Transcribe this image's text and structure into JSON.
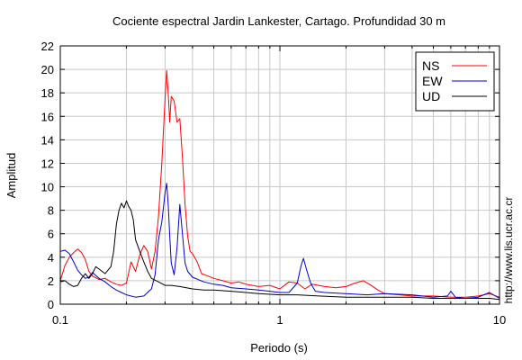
{
  "chart_data": {
    "type": "line",
    "title": "Cociente espectral Jardin Lankester, Cartago. Profundidad 30 m",
    "xlabel": "Periodo (s)",
    "ylabel": "Amplitud",
    "xscale": "log",
    "xlim": [
      0.1,
      10
    ],
    "ylim": [
      0,
      22
    ],
    "xticks": [
      {
        "value": 0.1,
        "label": "0.1"
      },
      {
        "value": 1,
        "label": "1"
      },
      {
        "value": 10,
        "label": "10"
      }
    ],
    "yticks": [
      0,
      2,
      4,
      6,
      8,
      10,
      12,
      14,
      16,
      18,
      20,
      22
    ],
    "grid": true,
    "legend_position": "top-right",
    "side_note": "http://www.lis.ucr.ac.cr",
    "series": [
      {
        "name": "NS",
        "color": "#ff0000",
        "points": [
          [
            0.1,
            2.0
          ],
          [
            0.105,
            3.3
          ],
          [
            0.11,
            4.0
          ],
          [
            0.115,
            4.4
          ],
          [
            0.12,
            4.7
          ],
          [
            0.125,
            4.4
          ],
          [
            0.13,
            3.8
          ],
          [
            0.135,
            2.8
          ],
          [
            0.14,
            2.4
          ],
          [
            0.15,
            2.1
          ],
          [
            0.16,
            2.2
          ],
          [
            0.17,
            1.9
          ],
          [
            0.18,
            1.7
          ],
          [
            0.19,
            1.6
          ],
          [
            0.2,
            1.8
          ],
          [
            0.21,
            3.6
          ],
          [
            0.22,
            2.8
          ],
          [
            0.23,
            4.2
          ],
          [
            0.24,
            5.0
          ],
          [
            0.25,
            4.5
          ],
          [
            0.26,
            3.0
          ],
          [
            0.27,
            4.5
          ],
          [
            0.28,
            7.5
          ],
          [
            0.29,
            12.0
          ],
          [
            0.3,
            17.5
          ],
          [
            0.305,
            19.9
          ],
          [
            0.31,
            18.0
          ],
          [
            0.315,
            15.5
          ],
          [
            0.32,
            17.7
          ],
          [
            0.33,
            17.3
          ],
          [
            0.34,
            15.5
          ],
          [
            0.35,
            15.8
          ],
          [
            0.36,
            12.5
          ],
          [
            0.37,
            8.5
          ],
          [
            0.38,
            5.8
          ],
          [
            0.39,
            4.5
          ],
          [
            0.4,
            4.3
          ],
          [
            0.42,
            3.6
          ],
          [
            0.44,
            2.6
          ],
          [
            0.47,
            2.4
          ],
          [
            0.5,
            2.2
          ],
          [
            0.55,
            2.0
          ],
          [
            0.6,
            1.8
          ],
          [
            0.65,
            1.9
          ],
          [
            0.7,
            1.7
          ],
          [
            0.75,
            1.6
          ],
          [
            0.8,
            1.5
          ],
          [
            0.9,
            1.6
          ],
          [
            1.0,
            1.3
          ],
          [
            1.1,
            1.9
          ],
          [
            1.2,
            1.8
          ],
          [
            1.3,
            1.3
          ],
          [
            1.4,
            1.7
          ],
          [
            1.6,
            1.5
          ],
          [
            1.8,
            1.4
          ],
          [
            2.0,
            1.5
          ],
          [
            2.2,
            1.8
          ],
          [
            2.4,
            2.0
          ],
          [
            2.6,
            1.6
          ],
          [
            2.8,
            1.2
          ],
          [
            3.0,
            0.9
          ],
          [
            3.5,
            0.8
          ],
          [
            4.0,
            0.7
          ],
          [
            5.0,
            0.7
          ],
          [
            6.0,
            0.6
          ],
          [
            7.0,
            0.6
          ],
          [
            8.0,
            0.7
          ],
          [
            9.0,
            0.9
          ],
          [
            10.0,
            0.6
          ]
        ]
      },
      {
        "name": "EW",
        "color": "#0000cc",
        "points": [
          [
            0.1,
            4.5
          ],
          [
            0.105,
            4.6
          ],
          [
            0.11,
            4.3
          ],
          [
            0.115,
            3.6
          ],
          [
            0.12,
            2.9
          ],
          [
            0.125,
            2.5
          ],
          [
            0.13,
            2.2
          ],
          [
            0.135,
            2.3
          ],
          [
            0.14,
            2.7
          ],
          [
            0.15,
            2.2
          ],
          [
            0.16,
            1.9
          ],
          [
            0.17,
            1.5
          ],
          [
            0.18,
            1.2
          ],
          [
            0.19,
            1.0
          ],
          [
            0.2,
            0.8
          ],
          [
            0.22,
            0.6
          ],
          [
            0.24,
            0.7
          ],
          [
            0.26,
            1.3
          ],
          [
            0.27,
            2.5
          ],
          [
            0.28,
            5.5
          ],
          [
            0.29,
            7.0
          ],
          [
            0.3,
            9.5
          ],
          [
            0.305,
            10.3
          ],
          [
            0.31,
            8.5
          ],
          [
            0.315,
            5.8
          ],
          [
            0.32,
            3.5
          ],
          [
            0.33,
            2.5
          ],
          [
            0.34,
            4.8
          ],
          [
            0.35,
            8.5
          ],
          [
            0.36,
            6.0
          ],
          [
            0.37,
            3.5
          ],
          [
            0.38,
            2.8
          ],
          [
            0.4,
            2.3
          ],
          [
            0.45,
            1.9
          ],
          [
            0.5,
            1.7
          ],
          [
            0.55,
            1.6
          ],
          [
            0.6,
            1.4
          ],
          [
            0.7,
            1.3
          ],
          [
            0.8,
            1.2
          ],
          [
            0.9,
            1.1
          ],
          [
            1.0,
            1.0
          ],
          [
            1.1,
            1.0
          ],
          [
            1.2,
            1.8
          ],
          [
            1.25,
            3.3
          ],
          [
            1.28,
            3.9
          ],
          [
            1.32,
            3.0
          ],
          [
            1.38,
            1.8
          ],
          [
            1.45,
            1.1
          ],
          [
            1.6,
            1.0
          ],
          [
            2.0,
            0.9
          ],
          [
            2.5,
            0.8
          ],
          [
            3.0,
            0.9
          ],
          [
            4.0,
            0.8
          ],
          [
            5.0,
            0.6
          ],
          [
            5.8,
            0.7
          ],
          [
            6.0,
            1.1
          ],
          [
            6.3,
            0.6
          ],
          [
            7.0,
            0.5
          ],
          [
            8.0,
            0.6
          ],
          [
            9.0,
            1.0
          ],
          [
            10.0,
            0.5
          ]
        ]
      },
      {
        "name": "UD",
        "color": "#000000",
        "points": [
          [
            0.1,
            1.9
          ],
          [
            0.105,
            2.0
          ],
          [
            0.11,
            1.7
          ],
          [
            0.115,
            1.5
          ],
          [
            0.12,
            1.6
          ],
          [
            0.125,
            2.2
          ],
          [
            0.13,
            2.6
          ],
          [
            0.135,
            2.2
          ],
          [
            0.14,
            2.6
          ],
          [
            0.145,
            3.2
          ],
          [
            0.15,
            3.0
          ],
          [
            0.155,
            2.8
          ],
          [
            0.16,
            2.6
          ],
          [
            0.17,
            3.2
          ],
          [
            0.175,
            4.5
          ],
          [
            0.18,
            6.8
          ],
          [
            0.185,
            8.0
          ],
          [
            0.19,
            8.6
          ],
          [
            0.195,
            8.2
          ],
          [
            0.2,
            8.8
          ],
          [
            0.205,
            8.3
          ],
          [
            0.21,
            8.0
          ],
          [
            0.215,
            7.2
          ],
          [
            0.22,
            5.5
          ],
          [
            0.23,
            4.5
          ],
          [
            0.24,
            3.6
          ],
          [
            0.25,
            2.8
          ],
          [
            0.26,
            2.2
          ],
          [
            0.28,
            1.9
          ],
          [
            0.3,
            1.6
          ],
          [
            0.32,
            1.6
          ],
          [
            0.35,
            1.5
          ],
          [
            0.4,
            1.3
          ],
          [
            0.45,
            1.2
          ],
          [
            0.5,
            1.2
          ],
          [
            0.6,
            1.1
          ],
          [
            0.7,
            1.0
          ],
          [
            0.8,
            0.9
          ],
          [
            1.0,
            0.8
          ],
          [
            1.2,
            0.8
          ],
          [
            1.5,
            0.7
          ],
          [
            2.0,
            0.6
          ],
          [
            2.5,
            0.6
          ],
          [
            3.0,
            0.6
          ],
          [
            4.0,
            0.6
          ],
          [
            5.0,
            0.5
          ],
          [
            6.0,
            0.5
          ],
          [
            7.0,
            0.5
          ],
          [
            8.0,
            0.5
          ],
          [
            9.0,
            0.5
          ],
          [
            10.0,
            0.4
          ]
        ]
      }
    ]
  }
}
